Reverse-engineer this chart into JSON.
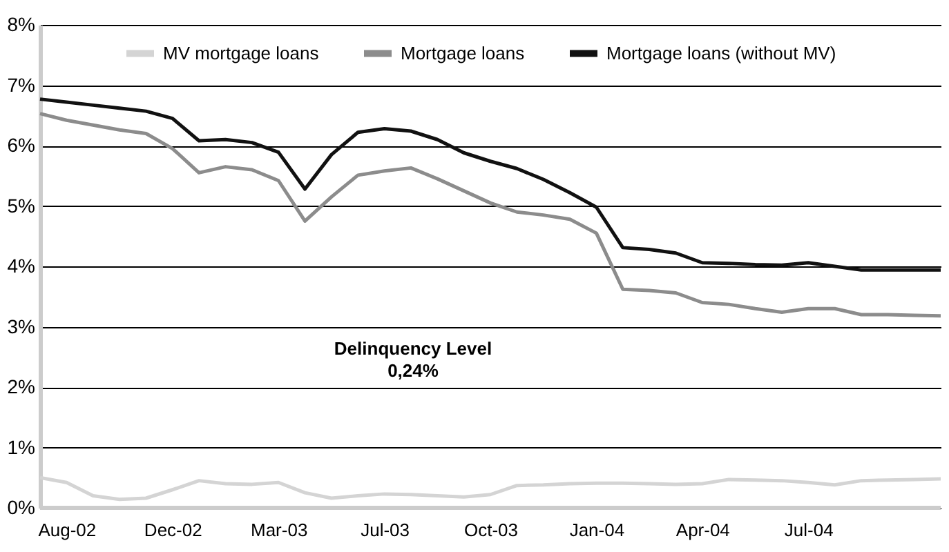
{
  "chart_data": {
    "type": "line",
    "categories": [
      null,
      "Aug-02",
      null,
      null,
      null,
      "Dec-02",
      null,
      null,
      null,
      "Mar-03",
      null,
      null,
      null,
      "Jul-03",
      null,
      null,
      null,
      "Oct-03",
      null,
      null,
      null,
      "Jan-04",
      null,
      null,
      null,
      "Apr-04",
      null,
      null,
      null,
      "Jul-04",
      null,
      null,
      null,
      null,
      null
    ],
    "series": [
      {
        "name": "MV mortgage loans",
        "color": "#d4d4d4",
        "values": [
          0.5,
          0.42,
          0.2,
          0.14,
          0.16,
          0.3,
          0.45,
          0.4,
          0.39,
          0.42,
          0.25,
          0.16,
          0.2,
          0.23,
          0.22,
          0.2,
          0.18,
          0.22,
          0.37,
          0.38,
          0.4,
          0.41,
          0.41,
          0.4,
          0.39,
          0.4,
          0.47,
          0.46,
          0.45,
          0.42,
          0.38,
          0.45,
          0.46,
          0.47,
          0.48
        ]
      },
      {
        "name": "Mortgage loans",
        "color": "#8c8c8c",
        "values": [
          6.53,
          6.42,
          6.34,
          6.26,
          6.2,
          5.95,
          5.55,
          5.65,
          5.6,
          5.42,
          4.75,
          5.15,
          5.51,
          5.58,
          5.63,
          5.45,
          5.25,
          5.05,
          4.9,
          4.85,
          4.78,
          4.55,
          3.62,
          3.6,
          3.56,
          3.4,
          3.37,
          3.3,
          3.24,
          3.3,
          3.3,
          3.2,
          3.2,
          3.19,
          3.18
        ]
      },
      {
        "name": "Mortgage loans (without MV)",
        "color": "#111111",
        "values": [
          6.77,
          6.72,
          6.67,
          6.62,
          6.57,
          6.45,
          6.08,
          6.1,
          6.05,
          5.89,
          5.28,
          5.85,
          6.22,
          6.28,
          6.24,
          6.1,
          5.88,
          5.74,
          5.62,
          5.44,
          5.22,
          4.98,
          4.31,
          4.28,
          4.22,
          4.06,
          4.05,
          4.03,
          4.02,
          4.06,
          4.0,
          3.94,
          3.94,
          3.94,
          3.94
        ]
      }
    ],
    "ylim": [
      0,
      8
    ],
    "yticks": [
      {
        "value": 0,
        "label": "0%"
      },
      {
        "value": 1,
        "label": "1%"
      },
      {
        "value": 2,
        "label": "2%"
      },
      {
        "value": 3,
        "label": "3%"
      },
      {
        "value": 4,
        "label": "4%"
      },
      {
        "value": 5,
        "label": "5%"
      },
      {
        "value": 6,
        "label": "6%"
      },
      {
        "value": 7,
        "label": "7%"
      },
      {
        "value": 8,
        "label": "8%"
      }
    ],
    "grid": "y",
    "legend": "top",
    "annotations": [
      "Delinquency Level\n0,24%"
    ]
  }
}
